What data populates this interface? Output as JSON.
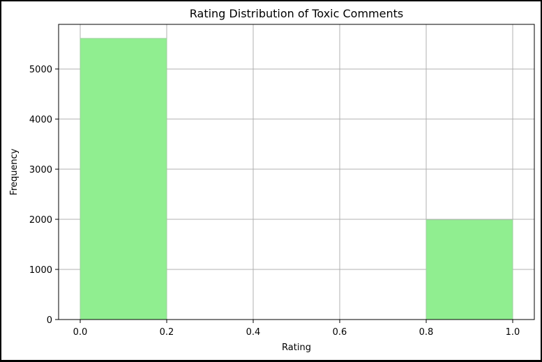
{
  "chart_data": {
    "type": "bar",
    "title": "Rating Distribution of Toxic Comments",
    "xlabel": "Rating",
    "ylabel": "Frequency",
    "bins": [
      {
        "start": 0.0,
        "end": 0.2,
        "value": 5610
      },
      {
        "start": 0.2,
        "end": 0.4,
        "value": 0
      },
      {
        "start": 0.4,
        "end": 0.6,
        "value": 0
      },
      {
        "start": 0.6,
        "end": 0.8,
        "value": 0
      },
      {
        "start": 0.8,
        "end": 1.0,
        "value": 1990
      }
    ],
    "xlim": [
      -0.05,
      1.05
    ],
    "ylim": [
      0,
      5890
    ],
    "xticks": [
      0.0,
      0.2,
      0.4,
      0.6,
      0.8,
      1.0
    ],
    "xtick_labels": [
      "0.0",
      "0.2",
      "0.4",
      "0.6",
      "0.8",
      "1.0"
    ],
    "yticks": [
      0,
      1000,
      2000,
      3000,
      4000,
      5000
    ],
    "ytick_labels": [
      "0",
      "1000",
      "2000",
      "3000",
      "4000",
      "5000"
    ],
    "grid": true,
    "colors": {
      "bar_fill": "#90ee90",
      "bar_edge": "#9fcf9f",
      "grid": "#b0b0b0",
      "axis": "#000000"
    }
  }
}
